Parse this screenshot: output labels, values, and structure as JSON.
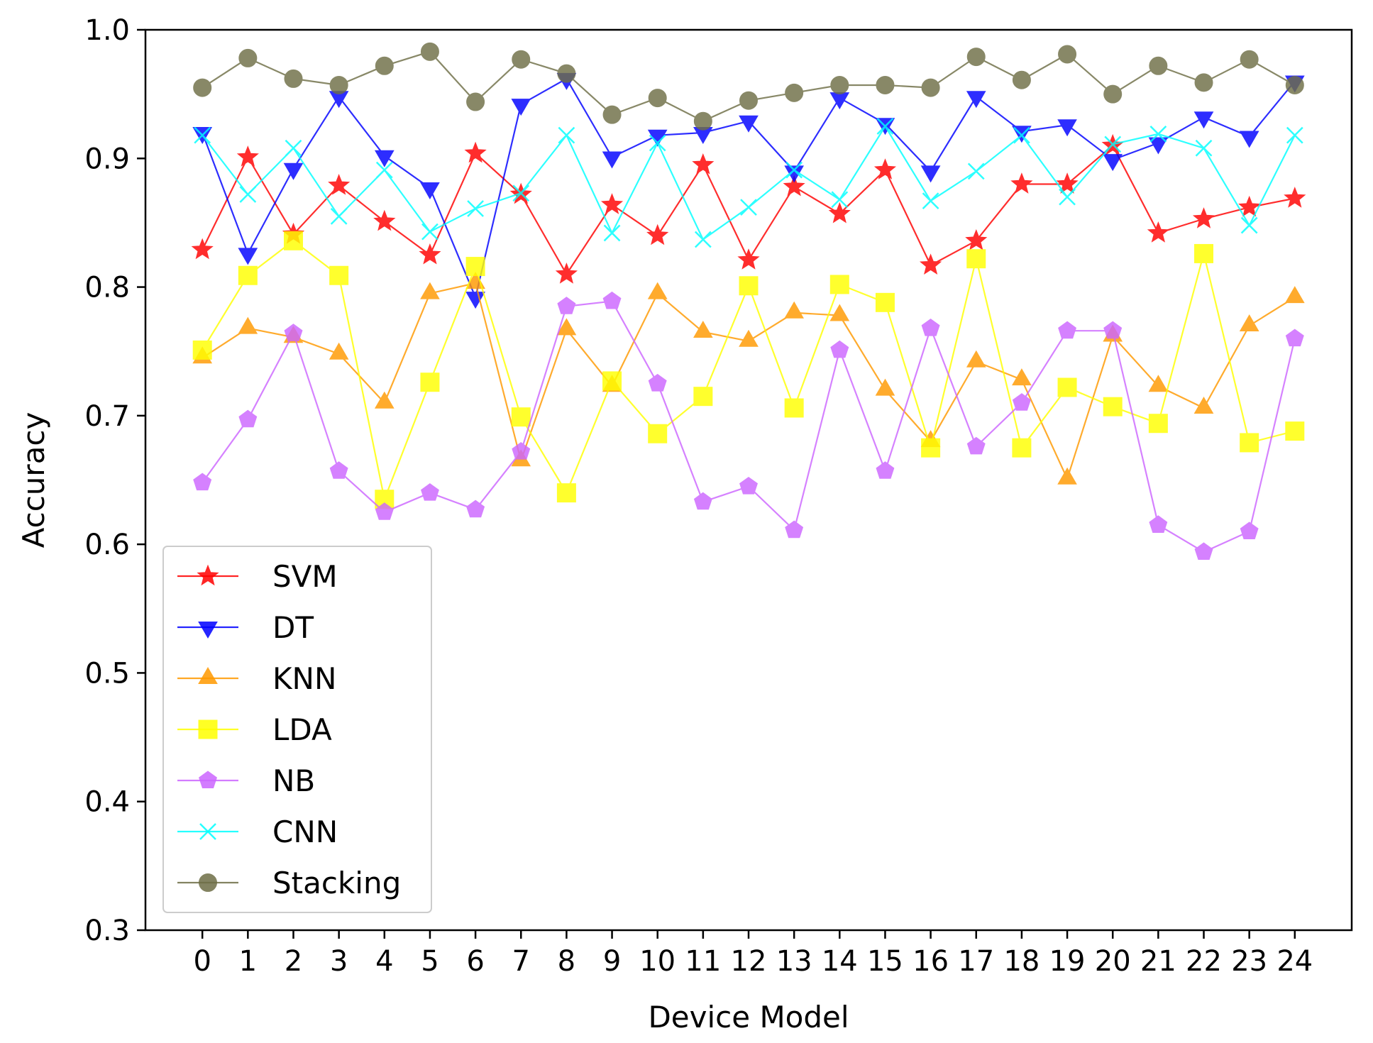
{
  "chart_data": {
    "type": "line",
    "title": "",
    "xlabel": "Device Model",
    "ylabel": "Accuracy",
    "ylim": [
      0.3,
      1.0
    ],
    "xlim": [
      -1.25,
      25.25
    ],
    "grid": false,
    "legend_position": "lower-left",
    "x": [
      0,
      1,
      2,
      3,
      4,
      5,
      6,
      7,
      8,
      9,
      10,
      11,
      12,
      13,
      14,
      15,
      16,
      17,
      18,
      19,
      20,
      21,
      22,
      23,
      24
    ],
    "x_tick_labels": [
      "0",
      "1",
      "2",
      "3",
      "4",
      "5",
      "6",
      "7",
      "8",
      "9",
      "10",
      "11",
      "12",
      "13",
      "14",
      "15",
      "16",
      "17",
      "18",
      "19",
      "20",
      "21",
      "22",
      "23",
      "24"
    ],
    "y_ticks": [
      0.3,
      0.4,
      0.5,
      0.6,
      0.7,
      0.8,
      0.9,
      1.0
    ],
    "y_tick_labels": [
      "0.3",
      "0.4",
      "0.5",
      "0.6",
      "0.7",
      "0.8",
      "0.9",
      "1.0"
    ],
    "series": [
      {
        "name": "SVM",
        "color": "#ff0000",
        "marker": "star",
        "values": [
          0.829,
          0.901,
          0.841,
          0.879,
          0.851,
          0.825,
          0.904,
          0.872,
          0.81,
          0.864,
          0.84,
          0.895,
          0.821,
          0.878,
          0.857,
          0.891,
          0.817,
          0.836,
          0.88,
          0.88,
          0.91,
          0.842,
          0.853,
          0.862,
          0.869
        ]
      },
      {
        "name": "DT",
        "color": "#0000ff",
        "marker": "triangle-down",
        "values": [
          0.92,
          0.826,
          0.892,
          0.948,
          0.902,
          0.877,
          0.792,
          0.942,
          0.962,
          0.901,
          0.918,
          0.92,
          0.929,
          0.89,
          0.947,
          0.927,
          0.89,
          0.948,
          0.921,
          0.926,
          0.899,
          0.912,
          0.932,
          0.917,
          0.96
        ]
      },
      {
        "name": "KNN",
        "color": "#ff9900",
        "marker": "triangle-up",
        "values": [
          0.745,
          0.768,
          0.761,
          0.748,
          0.71,
          0.795,
          0.803,
          0.665,
          0.767,
          0.723,
          0.795,
          0.765,
          0.758,
          0.78,
          0.778,
          0.72,
          0.68,
          0.742,
          0.728,
          0.651,
          0.762,
          0.723,
          0.706,
          0.77,
          0.792
        ]
      },
      {
        "name": "LDA",
        "color": "#ffff00",
        "marker": "square",
        "values": [
          0.751,
          0.809,
          0.836,
          0.809,
          0.635,
          0.726,
          0.816,
          0.699,
          0.64,
          0.727,
          0.686,
          0.715,
          0.801,
          0.706,
          0.802,
          0.788,
          0.675,
          0.822,
          0.675,
          0.722,
          0.707,
          0.694,
          0.826,
          0.679,
          0.688
        ]
      },
      {
        "name": "NB",
        "color": "#cc66ff",
        "marker": "pentagon",
        "values": [
          0.648,
          0.697,
          0.764,
          0.657,
          0.625,
          0.64,
          0.627,
          0.672,
          0.785,
          0.789,
          0.725,
          0.633,
          0.645,
          0.611,
          0.751,
          0.657,
          0.768,
          0.676,
          0.71,
          0.766,
          0.766,
          0.615,
          0.594,
          0.61,
          0.76
        ]
      },
      {
        "name": "CNN",
        "color": "#00ffff",
        "marker": "x",
        "values": [
          0.918,
          0.872,
          0.908,
          0.855,
          0.891,
          0.843,
          0.861,
          0.873,
          0.918,
          0.842,
          0.912,
          0.837,
          0.862,
          0.891,
          0.868,
          0.925,
          0.867,
          0.89,
          0.918,
          0.87,
          0.911,
          0.919,
          0.908,
          0.848,
          0.918
        ]
      },
      {
        "name": "Stacking",
        "color": "#6e6e46",
        "marker": "circle",
        "values": [
          0.955,
          0.978,
          0.962,
          0.957,
          0.972,
          0.983,
          0.944,
          0.977,
          0.966,
          0.934,
          0.947,
          0.929,
          0.945,
          0.951,
          0.957,
          0.957,
          0.955,
          0.979,
          0.961,
          0.981,
          0.95,
          0.972,
          0.959,
          0.977,
          0.957
        ]
      }
    ]
  }
}
